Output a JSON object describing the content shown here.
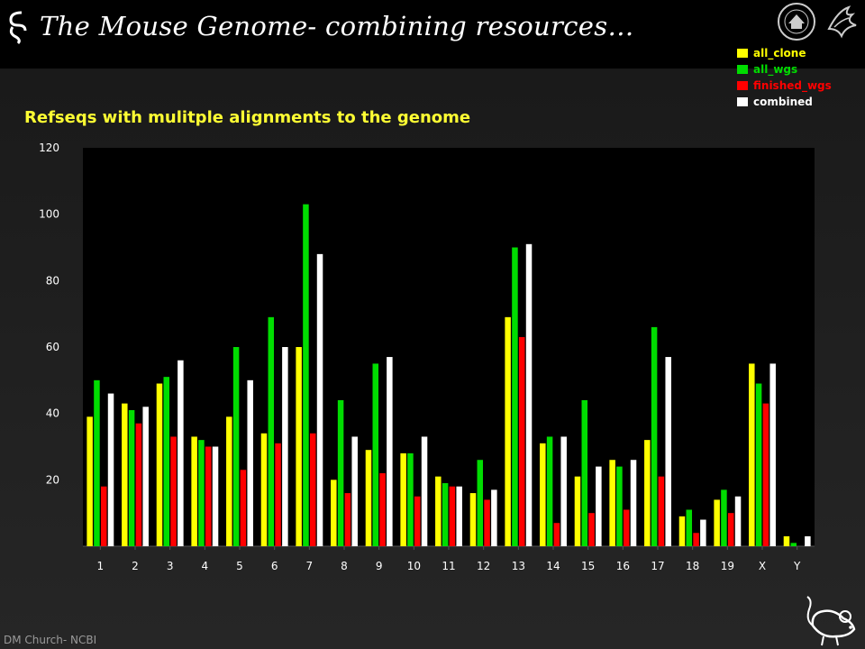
{
  "header": {
    "title": "The Mouse Genome- combining resources…"
  },
  "subtitle": "Refseqs with mulitple alignments to the genome",
  "footer": {
    "credit": "DM Church- NCBI"
  },
  "icons": {
    "logo": "squiggle-logo-icon",
    "seal": "nih-seal-icon",
    "hhs": "hhs-eagle-icon",
    "mouse": "mouse-cartoon-icon"
  },
  "chart_data": {
    "type": "bar",
    "title": "Refseqs with mulitple alignments to the genome",
    "xlabel": "",
    "ylabel": "",
    "ylim": [
      0,
      120
    ],
    "yticks": [
      20,
      40,
      60,
      80,
      100,
      120
    ],
    "grid": false,
    "legend_position": "top-right",
    "categories": [
      "1",
      "2",
      "3",
      "4",
      "5",
      "6",
      "7",
      "8",
      "9",
      "10",
      "11",
      "12",
      "13",
      "14",
      "15",
      "16",
      "17",
      "18",
      "19",
      "X",
      "Y"
    ],
    "series": [
      {
        "name": "all_clone",
        "color": "#ffff00",
        "values": [
          39,
          43,
          49,
          33,
          39,
          34,
          60,
          20,
          29,
          28,
          21,
          16,
          69,
          31,
          21,
          26,
          32,
          9,
          14,
          55,
          3
        ]
      },
      {
        "name": "all_wgs",
        "color": "#00dd00",
        "values": [
          50,
          41,
          51,
          32,
          60,
          69,
          103,
          44,
          55,
          28,
          19,
          26,
          90,
          33,
          44,
          24,
          66,
          11,
          17,
          49,
          1
        ]
      },
      {
        "name": "finished_wgs",
        "color": "#ff0000",
        "values": [
          18,
          37,
          33,
          30,
          23,
          31,
          34,
          16,
          22,
          15,
          18,
          14,
          63,
          7,
          10,
          11,
          21,
          4,
          10,
          43,
          0
        ]
      },
      {
        "name": "combined",
        "color": "#ffffff",
        "values": [
          46,
          42,
          56,
          30,
          50,
          60,
          88,
          33,
          57,
          33,
          18,
          17,
          91,
          33,
          24,
          26,
          57,
          8,
          15,
          55,
          3
        ]
      }
    ]
  }
}
